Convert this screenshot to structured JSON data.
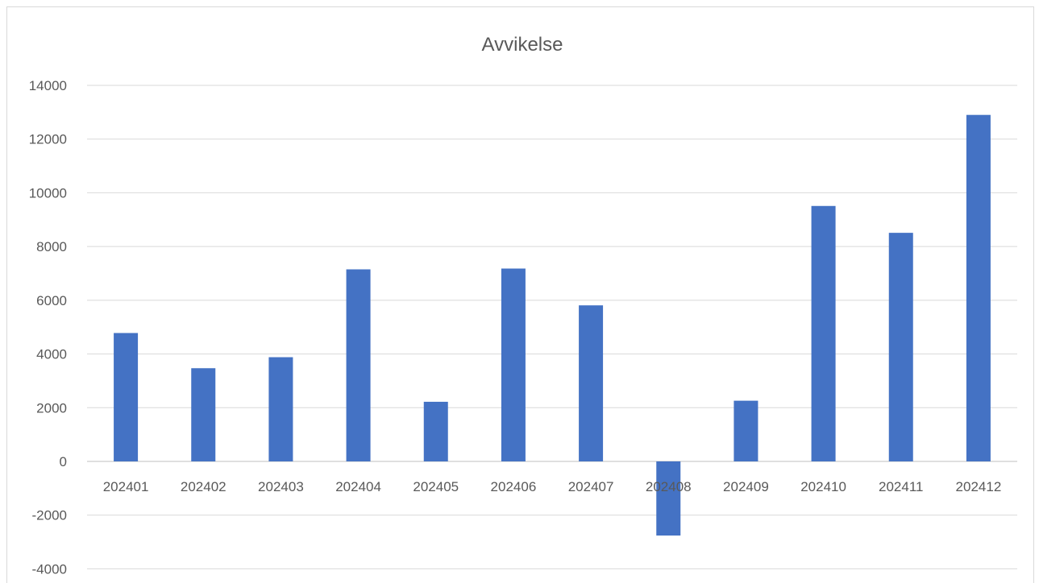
{
  "chart_data": {
    "type": "bar",
    "title": "Avvikelse",
    "xlabel": "",
    "ylabel": "",
    "categories": [
      "202401",
      "202402",
      "202403",
      "202404",
      "202405",
      "202406",
      "202407",
      "202408",
      "202409",
      "202410",
      "202411",
      "202412"
    ],
    "series": [
      {
        "name": "",
        "values": [
          4780,
          3470,
          3880,
          7150,
          2220,
          7180,
          5810,
          -2760,
          2260,
          9510,
          8510,
          12900
        ]
      }
    ],
    "ylim": [
      -4000,
      14000
    ],
    "yticks": [
      14000,
      12000,
      10000,
      8000,
      6000,
      4000,
      2000,
      0,
      -2000,
      -4000
    ],
    "grid": true,
    "legend": "none",
    "colors": {
      "bar": "#4472C4",
      "grid": "#d9d9d9",
      "text": "#595959"
    }
  }
}
